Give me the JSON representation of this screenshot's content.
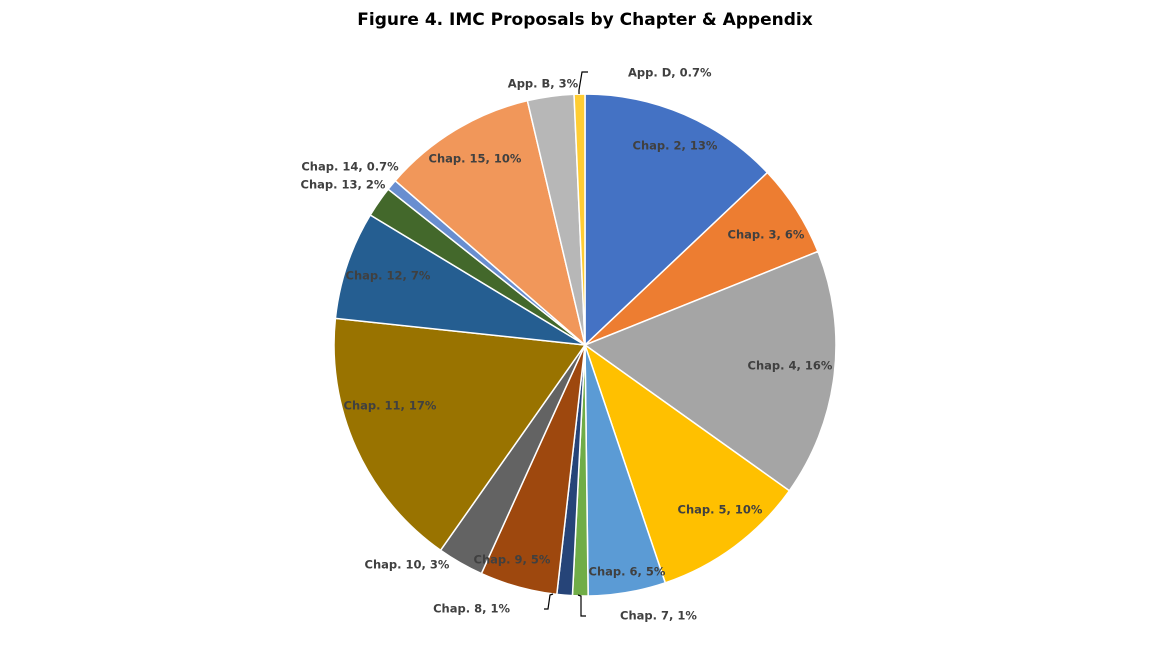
{
  "chart_data": {
    "type": "pie",
    "title": "Figure 4. IMC Proposals by Chapter & Appendix",
    "labels": [
      "Chap. 2, 13%",
      "Chap. 3, 6%",
      "Chap. 4, 16%",
      "Chap. 5, 10%",
      "Chap. 6, 5%",
      "Chap. 7, 1%",
      "Chap. 8, 1%",
      "Chap. 9, 5%",
      "Chap. 10, 3%",
      "Chap. 11, 17%",
      "Chap. 12, 7%",
      "Chap. 13, 2%",
      "Chap. 14, 0.7%",
      "Chap. 15, 10%",
      "App. B, 3%",
      "App. D, 0.7%"
    ],
    "values": [
      13,
      6,
      16,
      10,
      5,
      1,
      1,
      5,
      3,
      17,
      7,
      2,
      0.7,
      10,
      3,
      0.7
    ],
    "colors": [
      "#4472c4",
      "#ed7d31",
      "#a5a5a5",
      "#ffc000",
      "#5b9bd5",
      "#70ad47",
      "#264478",
      "#9e480e",
      "#636363",
      "#997300",
      "#255e91",
      "#43682b",
      "#698ed0",
      "#f1975a",
      "#b7b7b7",
      "#ffcd33"
    ]
  }
}
